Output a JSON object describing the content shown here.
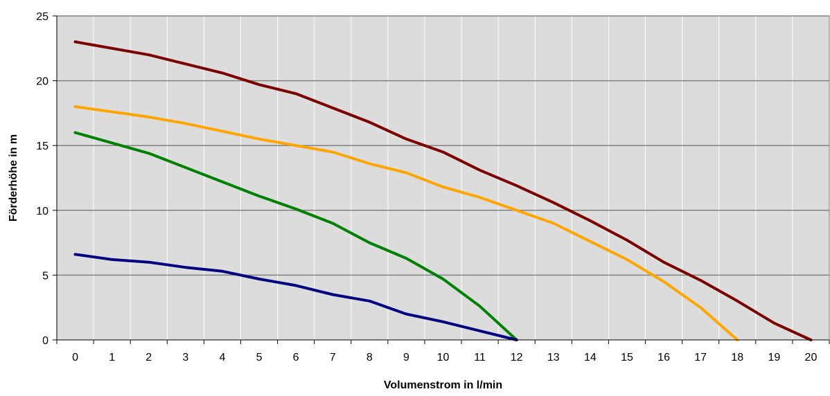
{
  "chart_data": {
    "type": "line",
    "title": "",
    "xlabel": "Volumenstrom in l/min",
    "ylabel": "Förderhöhe in m",
    "xlim": [
      0,
      20
    ],
    "ylim": [
      0,
      25
    ],
    "xticks": [
      "0",
      "1",
      "2",
      "3",
      "4",
      "5",
      "6",
      "7",
      "8",
      "9",
      "10",
      "11",
      "12",
      "13",
      "14",
      "15",
      "16",
      "17",
      "18",
      "19",
      "20"
    ],
    "yticks": [
      "0",
      "5",
      "10",
      "15",
      "20",
      "25"
    ],
    "grid": true,
    "legend": "none",
    "plot_background": "#dcdcdc",
    "series": [
      {
        "color": "#7b0000",
        "x": [
          0,
          2,
          4,
          5,
          6,
          7,
          8,
          9,
          10,
          11,
          12,
          13,
          14,
          15,
          16,
          17,
          18,
          19,
          20
        ],
        "y": [
          23,
          22,
          20.6,
          19.7,
          19,
          17.9,
          16.8,
          15.5,
          14.5,
          13.1,
          11.9,
          10.6,
          9.2,
          7.7,
          6,
          4.6,
          3,
          1.3,
          0
        ]
      },
      {
        "color": "#ffa500",
        "x": [
          0,
          2,
          3,
          4,
          5,
          6,
          7,
          8,
          9,
          10,
          11,
          12,
          13,
          14,
          15,
          16,
          17,
          18
        ],
        "y": [
          18,
          17.2,
          16.7,
          16.1,
          15.5,
          15,
          14.5,
          13.6,
          12.9,
          11.8,
          11,
          10,
          9,
          7.6,
          6.2,
          4.5,
          2.5,
          0
        ]
      },
      {
        "color": "#008000",
        "x": [
          0,
          2,
          4,
          5,
          6,
          7,
          8,
          9,
          10,
          11,
          12
        ],
        "y": [
          16,
          14.4,
          12.2,
          11.1,
          10.1,
          9,
          7.5,
          6.3,
          4.7,
          2.6,
          0
        ]
      },
      {
        "color": "#000080",
        "x": [
          0,
          1,
          2,
          3,
          4,
          5,
          6,
          7,
          8,
          9,
          10,
          11,
          12
        ],
        "y": [
          6.6,
          6.2,
          6,
          5.6,
          5.3,
          4.7,
          4.2,
          3.5,
          3,
          2,
          1.4,
          0.7,
          0
        ]
      }
    ]
  }
}
